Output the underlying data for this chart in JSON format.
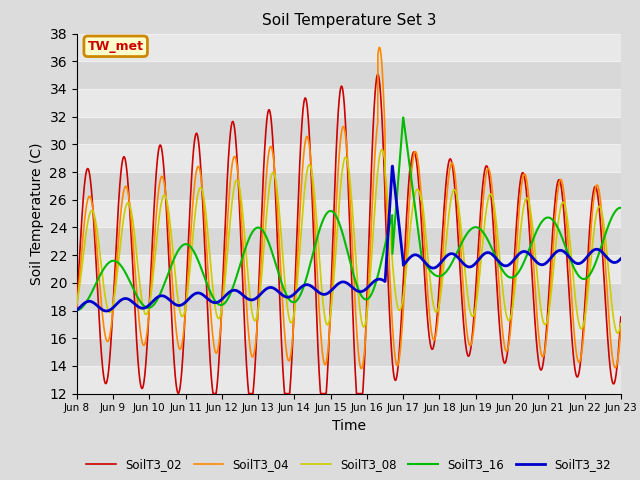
{
  "title": "Soil Temperature Set 3",
  "xlabel": "Time",
  "ylabel": "Soil Temperature (C)",
  "ylim": [
    12,
    38
  ],
  "background_color": "#dcdcdc",
  "plot_bg_color": "#dcdcdc",
  "grid_color": "#f0f0f0",
  "annotation_text": "TW_met",
  "annotation_bg": "#ffffcc",
  "annotation_border": "#cc8800",
  "annotation_text_color": "#cc0000",
  "legend_labels": [
    "SoilT3_02",
    "SoilT3_04",
    "SoilT3_08",
    "SoilT3_16",
    "SoilT3_32"
  ],
  "line_colors": [
    "#cc0000",
    "#ff8800",
    "#cccc00",
    "#00bb00",
    "#0000cc"
  ],
  "line_widths": [
    1.2,
    1.2,
    1.2,
    1.5,
    2.0
  ],
  "x_tick_labels": [
    "Jun 8",
    "Jun 9",
    "Jun 10",
    "Jun 11",
    "Jun 12",
    "Jun 13",
    "Jun 14",
    "Jun 15",
    "Jun 16",
    "Jun 17",
    "Jun 18",
    "Jun 19",
    "Jun 20",
    "Jun 21",
    "Jun 22",
    "Jun 23"
  ],
  "x_tick_positions": [
    0,
    1,
    2,
    3,
    4,
    5,
    6,
    7,
    8,
    9,
    10,
    11,
    12,
    13,
    14,
    15
  ]
}
